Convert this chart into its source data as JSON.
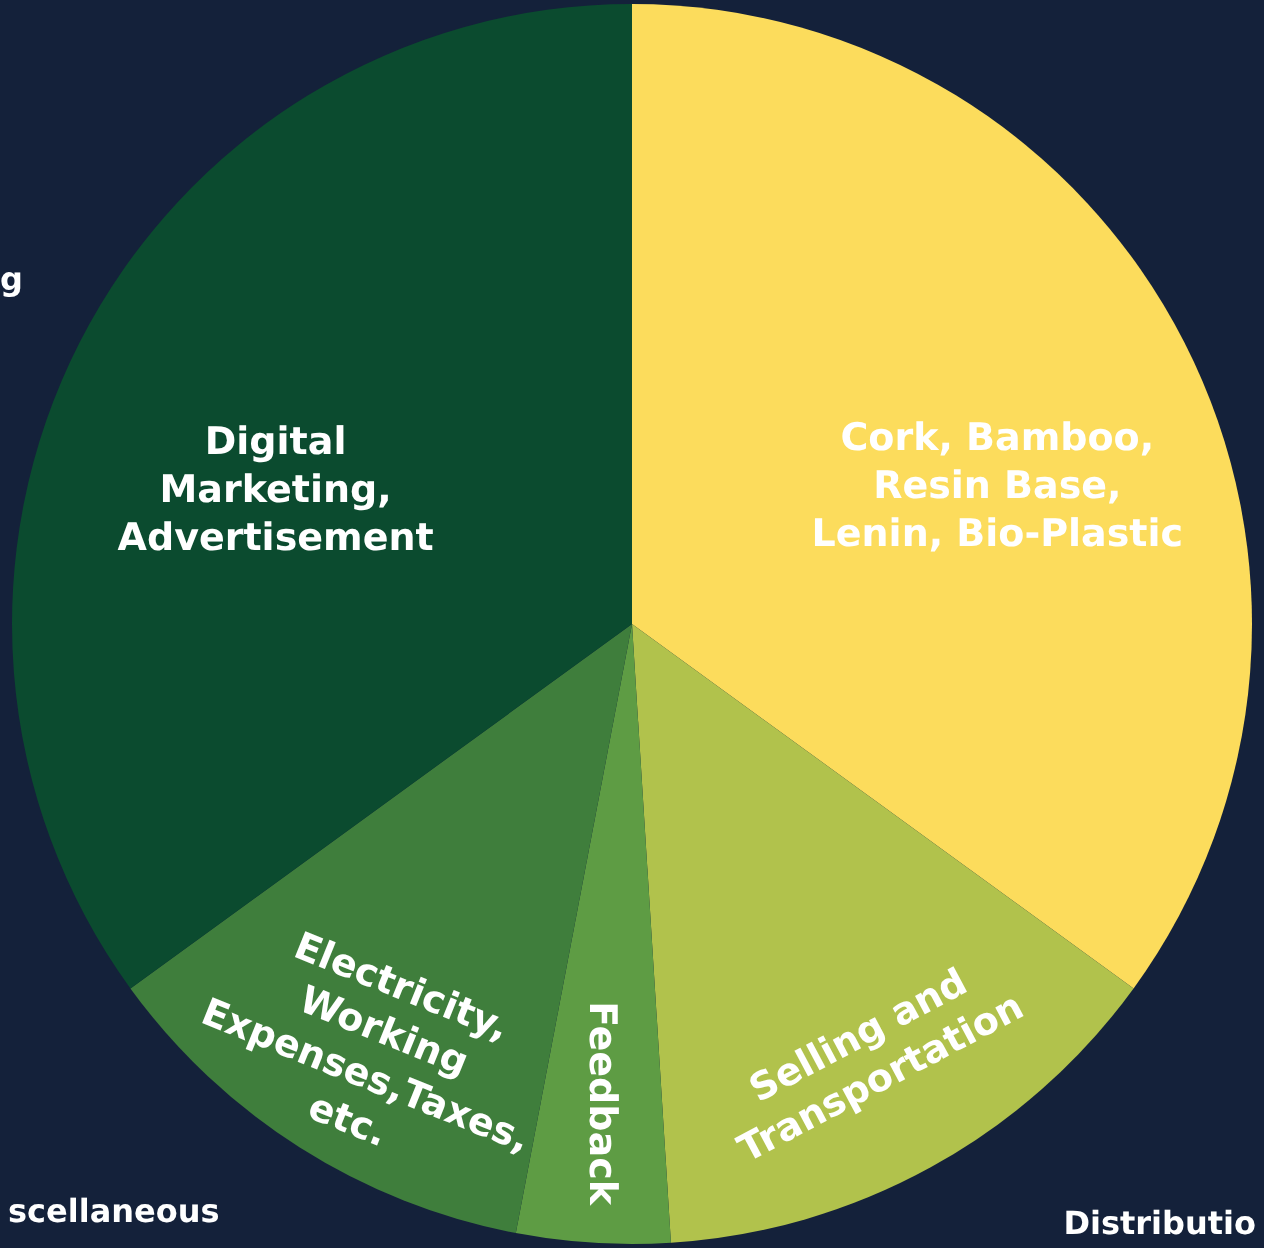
{
  "chart_data": {
    "type": "pie",
    "categories": [
      "Cork, Bamboo,\nResin Base,\nLenin, Bio-Plastic",
      "Selling and\nTransportation",
      "Feedback",
      "Electricity,\nWorking\nExpenses,Taxes,\netc.",
      "Digital\nMarketing,\nAdvertisement"
    ],
    "values": [
      35,
      14,
      4,
      12,
      35
    ],
    "colors": [
      "#fcdc5c",
      "#b1c24c",
      "#5e9c44",
      "#3f7e3c",
      "#0b4b2f"
    ],
    "annotations": [
      "g",
      "scellaneous",
      "Distributio"
    ],
    "legend": false
  }
}
